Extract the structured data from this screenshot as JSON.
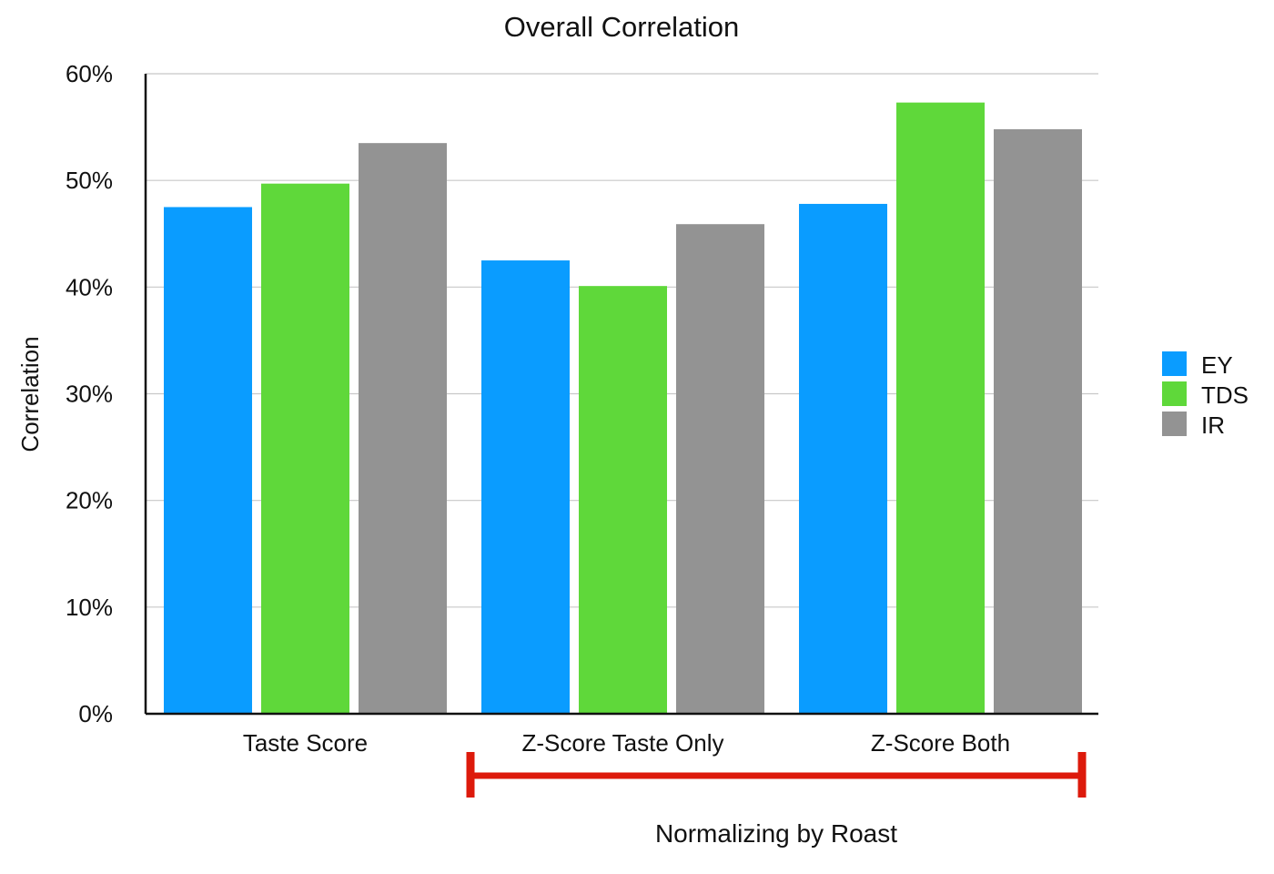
{
  "chart_data": {
    "type": "bar",
    "title": "Overall Correlation",
    "ylabel": "Correlation",
    "xlabel": "",
    "ylim": [
      0,
      60
    ],
    "yticks": [
      0,
      10,
      20,
      30,
      40,
      50,
      60
    ],
    "ytick_suffix": "%",
    "grid": true,
    "legend_position": "right",
    "categories": [
      "Taste Score",
      "Z-Score Taste Only",
      "Z-Score Both"
    ],
    "series": [
      {
        "name": "EY",
        "color": "#0a9cff",
        "values": [
          47.5,
          42.5,
          47.8
        ]
      },
      {
        "name": "TDS",
        "color": "#5fd83a",
        "values": [
          49.7,
          40.1,
          57.3
        ]
      },
      {
        "name": "IR",
        "color": "#939393",
        "values": [
          53.5,
          45.9,
          54.8
        ]
      }
    ],
    "annotation": {
      "text": "Normalizing by Roast",
      "color": "#dd1a0b",
      "span_categories": [
        "Z-Score Taste Only",
        "Z-Score Both"
      ]
    }
  }
}
